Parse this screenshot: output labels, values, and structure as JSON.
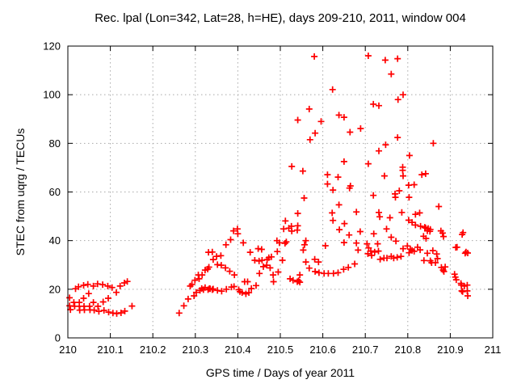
{
  "chart_data": {
    "type": "scatter",
    "title": "Rec. lpal (Lon=342, Lat=28, h=HE), days 209-210, 2011, window 004",
    "xlabel": "GPS time / Days of year 2011",
    "ylabel": "STEC from uqrg / TECUs",
    "xlim": [
      210,
      211
    ],
    "ylim": [
      0,
      120
    ],
    "xticks": [
      210,
      210.1,
      210.2,
      210.3,
      210.4,
      210.5,
      210.6,
      210.7,
      210.8,
      210.9,
      211
    ],
    "xtick_labels": [
      "210",
      "210.1",
      "210.2",
      "210.3",
      "210.4",
      "210.5",
      "210.6",
      "210.7",
      "210.8",
      "210.9",
      "211"
    ],
    "yticks": [
      0,
      20,
      40,
      60,
      80,
      100,
      120
    ],
    "ytick_labels": [
      "0",
      "20",
      "40",
      "60",
      "80",
      "100",
      "120"
    ],
    "grid": true,
    "legend": "none",
    "marker": "plus",
    "series": [
      {
        "name": "STEC from uqrg",
        "color": "#ff0000",
        "points": [
          [
            210.004,
            16.5
          ],
          [
            210.004,
            13.2
          ],
          [
            210.006,
            11.6
          ],
          [
            210.014,
            14.6
          ],
          [
            210.016,
            13.0
          ],
          [
            210.018,
            20.2
          ],
          [
            210.025,
            21.0
          ],
          [
            210.027,
            14.6
          ],
          [
            210.027,
            13.0
          ],
          [
            210.028,
            11.4
          ],
          [
            210.037,
            21.6
          ],
          [
            210.037,
            16.3
          ],
          [
            210.038,
            13.0
          ],
          [
            210.039,
            11.5
          ],
          [
            210.047,
            22.0
          ],
          [
            210.049,
            18.2
          ],
          [
            210.051,
            13.0
          ],
          [
            210.052,
            11.5
          ],
          [
            210.06,
            21.3
          ],
          [
            210.06,
            14.6
          ],
          [
            210.062,
            11.4
          ],
          [
            210.07,
            22.2
          ],
          [
            210.071,
            13.0
          ],
          [
            210.073,
            10.9
          ],
          [
            210.082,
            21.9
          ],
          [
            210.083,
            14.8
          ],
          [
            210.085,
            11.3
          ],
          [
            210.094,
            21.3
          ],
          [
            210.095,
            16.3
          ],
          [
            210.096,
            10.6
          ],
          [
            210.104,
            20.7
          ],
          [
            210.106,
            10.2
          ],
          [
            210.114,
            18.7
          ],
          [
            210.115,
            10.0
          ],
          [
            210.123,
            21.3
          ],
          [
            210.125,
            10.3
          ],
          [
            210.133,
            22.6
          ],
          [
            210.134,
            11.0
          ],
          [
            210.14,
            23.2
          ],
          [
            210.151,
            13.1
          ],
          [
            210.262,
            10.2
          ],
          [
            210.273,
            13.2
          ],
          [
            210.283,
            16.0
          ],
          [
            210.288,
            21.3
          ],
          [
            210.292,
            22.0
          ],
          [
            210.297,
            17.3
          ],
          [
            210.299,
            23.7
          ],
          [
            210.302,
            18.7
          ],
          [
            210.307,
            25.9
          ],
          [
            210.309,
            24.3
          ],
          [
            210.311,
            19.5
          ],
          [
            210.315,
            20.3
          ],
          [
            210.316,
            25.9
          ],
          [
            210.319,
            19.8
          ],
          [
            210.323,
            27.9
          ],
          [
            210.323,
            20.7
          ],
          [
            210.329,
            28.3
          ],
          [
            210.33,
            19.8
          ],
          [
            210.331,
            35.2
          ],
          [
            210.332,
            29.1
          ],
          [
            210.333,
            20.3
          ],
          [
            210.335,
            20.2
          ],
          [
            210.34,
            35.3
          ],
          [
            210.34,
            19.8
          ],
          [
            210.342,
            32.2
          ],
          [
            210.342,
            20.1
          ],
          [
            210.35,
            33.5
          ],
          [
            210.352,
            30.1
          ],
          [
            210.352,
            19.5
          ],
          [
            210.36,
            33.8
          ],
          [
            210.361,
            29.9
          ],
          [
            210.362,
            19.2
          ],
          [
            210.371,
            28.8
          ],
          [
            210.372,
            38.3
          ],
          [
            210.373,
            20.0
          ],
          [
            210.381,
            27.4
          ],
          [
            210.383,
            40.4
          ],
          [
            210.385,
            20.9
          ],
          [
            210.39,
            44.0
          ],
          [
            210.391,
            21.1
          ],
          [
            210.392,
            25.9
          ],
          [
            210.399,
            44.8
          ],
          [
            210.4,
            42.8
          ],
          [
            210.402,
            19.8
          ],
          [
            210.405,
            19.0
          ],
          [
            210.41,
            18.6
          ],
          [
            210.413,
            39.1
          ],
          [
            210.416,
            23.1
          ],
          [
            210.419,
            18.1
          ],
          [
            210.423,
            23.1
          ],
          [
            210.426,
            18.6
          ],
          [
            210.429,
            35.2
          ],
          [
            210.432,
            20.3
          ],
          [
            210.44,
            31.9
          ],
          [
            210.443,
            21.5
          ],
          [
            210.448,
            36.7
          ],
          [
            210.45,
            31.6
          ],
          [
            210.451,
            26.5
          ],
          [
            210.456,
            36.4
          ],
          [
            210.457,
            31.9
          ],
          [
            210.46,
            29.3
          ],
          [
            210.468,
            29.9
          ],
          [
            210.469,
            32.2
          ],
          [
            210.473,
            33.0
          ],
          [
            210.476,
            28.8
          ],
          [
            210.479,
            33.3
          ],
          [
            210.483,
            25.9
          ],
          [
            210.484,
            23.1
          ],
          [
            210.492,
            40.0
          ],
          [
            210.493,
            35.5
          ],
          [
            210.495,
            27.1
          ],
          [
            210.498,
            39.1
          ],
          [
            210.505,
            31.9
          ],
          [
            210.508,
            44.8
          ],
          [
            210.511,
            38.9
          ],
          [
            210.512,
            48.1
          ],
          [
            210.514,
            39.5
          ],
          [
            210.52,
            45.1
          ],
          [
            210.523,
            24.3
          ],
          [
            210.526,
            45.9
          ],
          [
            210.527,
            70.5
          ],
          [
            210.527,
            43.9
          ],
          [
            210.53,
            23.7
          ],
          [
            210.54,
            44.3
          ],
          [
            210.54,
            23.1
          ],
          [
            210.541,
            89.6
          ],
          [
            210.541,
            51.2
          ],
          [
            210.541,
            46.1
          ],
          [
            210.543,
            23.5
          ],
          [
            210.546,
            25.9
          ],
          [
            210.546,
            22.9
          ],
          [
            210.553,
            68.6
          ],
          [
            210.554,
            36.1
          ],
          [
            210.556,
            57.5
          ],
          [
            210.557,
            38.3
          ],
          [
            210.56,
            40.0
          ],
          [
            210.56,
            31.2
          ],
          [
            210.568,
            94.1
          ],
          [
            210.568,
            28.7
          ],
          [
            210.57,
            81.5
          ],
          [
            210.58,
            115.7
          ],
          [
            210.581,
            32.3
          ],
          [
            210.582,
            84.2
          ],
          [
            210.582,
            27.3
          ],
          [
            210.59,
            31.2
          ],
          [
            210.591,
            26.8
          ],
          [
            210.596,
            89.0
          ],
          [
            210.603,
            26.5
          ],
          [
            210.606,
            37.9
          ],
          [
            210.611,
            67.1
          ],
          [
            210.611,
            63.3
          ],
          [
            210.613,
            26.5
          ],
          [
            210.622,
            51.4
          ],
          [
            210.623,
            102.1
          ],
          [
            210.624,
            60.8
          ],
          [
            210.624,
            48.3
          ],
          [
            210.625,
            26.5
          ],
          [
            210.636,
            66.1
          ],
          [
            210.636,
            26.8
          ],
          [
            210.638,
            91.6
          ],
          [
            210.638,
            54.7
          ],
          [
            210.639,
            44.5
          ],
          [
            210.649,
            28.2
          ],
          [
            210.65,
            90.7
          ],
          [
            210.65,
            72.5
          ],
          [
            210.65,
            39.2
          ],
          [
            210.651,
            47.0
          ],
          [
            210.66,
            29.0
          ],
          [
            210.662,
            42.3
          ],
          [
            210.663,
            61.6
          ],
          [
            210.664,
            84.6
          ],
          [
            210.665,
            62.5
          ],
          [
            210.675,
            30.4
          ],
          [
            210.679,
            51.8
          ],
          [
            210.679,
            39.0
          ],
          [
            210.683,
            36.1
          ],
          [
            210.688,
            43.7
          ],
          [
            210.689,
            86.1
          ],
          [
            210.704,
            38.7
          ],
          [
            210.706,
            34.6
          ],
          [
            210.707,
            116.0
          ],
          [
            210.707,
            71.6
          ],
          [
            210.708,
            37.0
          ],
          [
            210.713,
            35.7
          ],
          [
            210.715,
            33.9
          ],
          [
            210.719,
            96.1
          ],
          [
            210.719,
            58.6
          ],
          [
            210.72,
            42.8
          ],
          [
            210.722,
            35.3
          ],
          [
            210.729,
            38.7
          ],
          [
            210.731,
            35.7
          ],
          [
            210.732,
            95.5
          ],
          [
            210.732,
            76.9
          ],
          [
            210.732,
            51.6
          ],
          [
            210.734,
            49.8
          ],
          [
            210.735,
            32.3
          ],
          [
            210.744,
            32.8
          ],
          [
            210.745,
            66.6
          ],
          [
            210.747,
            114.2
          ],
          [
            210.748,
            79.4
          ],
          [
            210.75,
            44.8
          ],
          [
            210.751,
            32.8
          ],
          [
            210.758,
            49.4
          ],
          [
            210.761,
            108.5
          ],
          [
            210.761,
            41.4
          ],
          [
            210.761,
            33.5
          ],
          [
            210.767,
            32.8
          ],
          [
            210.77,
            59.2
          ],
          [
            210.771,
            57.8
          ],
          [
            210.772,
            39.8
          ],
          [
            210.775,
            33.1
          ],
          [
            210.776,
            114.8
          ],
          [
            210.776,
            82.4
          ],
          [
            210.777,
            98.0
          ],
          [
            210.78,
            60.5
          ],
          [
            210.784,
            33.5
          ],
          [
            210.786,
            51.6
          ],
          [
            210.788,
            70.2
          ],
          [
            210.788,
            68.9
          ],
          [
            210.789,
            100.0
          ],
          [
            210.789,
            66.6
          ],
          [
            210.789,
            36.7
          ],
          [
            210.799,
            37.8
          ],
          [
            210.802,
            62.8
          ],
          [
            210.802,
            48.4
          ],
          [
            210.803,
            57.8
          ],
          [
            210.803,
            35.0
          ],
          [
            210.804,
            75.0
          ],
          [
            210.806,
            36.5
          ],
          [
            210.81,
            47.5
          ],
          [
            210.81,
            36.0
          ],
          [
            210.815,
            63.0
          ],
          [
            210.815,
            35.6
          ],
          [
            210.818,
            50.8
          ],
          [
            210.818,
            46.4
          ],
          [
            210.823,
            37.3
          ],
          [
            210.828,
            51.4
          ],
          [
            210.829,
            36.2
          ],
          [
            210.83,
            45.9
          ],
          [
            210.833,
            67.1
          ],
          [
            210.837,
            41.8
          ],
          [
            210.838,
            31.8
          ],
          [
            210.84,
            45.5
          ],
          [
            210.842,
            67.5
          ],
          [
            210.842,
            45.2
          ],
          [
            210.843,
            40.9
          ],
          [
            210.846,
            44.0
          ],
          [
            210.846,
            34.8
          ],
          [
            210.848,
            45.0
          ],
          [
            210.852,
            43.8
          ],
          [
            210.853,
            44.6
          ],
          [
            210.853,
            31.7
          ],
          [
            210.856,
            30.9
          ],
          [
            210.859,
            35.9
          ],
          [
            210.86,
            80.0
          ],
          [
            210.865,
            30.9
          ],
          [
            210.868,
            34.5
          ],
          [
            210.87,
            32.6
          ],
          [
            210.873,
            54.0
          ],
          [
            210.878,
            44.0
          ],
          [
            210.879,
            29.0
          ],
          [
            210.882,
            43.1
          ],
          [
            210.883,
            27.9
          ],
          [
            210.884,
            41.7
          ],
          [
            210.885,
            27.3
          ],
          [
            210.888,
            29.2
          ],
          [
            210.91,
            26.2
          ],
          [
            210.912,
            25.0
          ],
          [
            210.913,
            37.2
          ],
          [
            210.914,
            23.9
          ],
          [
            210.916,
            37.3
          ],
          [
            210.925,
            22.4
          ],
          [
            210.926,
            21.7
          ],
          [
            210.927,
            19.3
          ],
          [
            210.928,
            42.5
          ],
          [
            210.929,
            19.0
          ],
          [
            210.93,
            43.3
          ],
          [
            210.933,
            21.3
          ],
          [
            210.935,
            34.8
          ],
          [
            210.937,
            35.3
          ],
          [
            210.94,
            21.7
          ],
          [
            210.94,
            19.3
          ],
          [
            210.941,
            34.9
          ],
          [
            210.941,
            17.3
          ]
        ]
      }
    ]
  },
  "colors": {
    "background": "#ffffff",
    "frame": "#000000",
    "grid": "#a8a8a8",
    "marker": "#ff0000",
    "text": "#000000"
  }
}
